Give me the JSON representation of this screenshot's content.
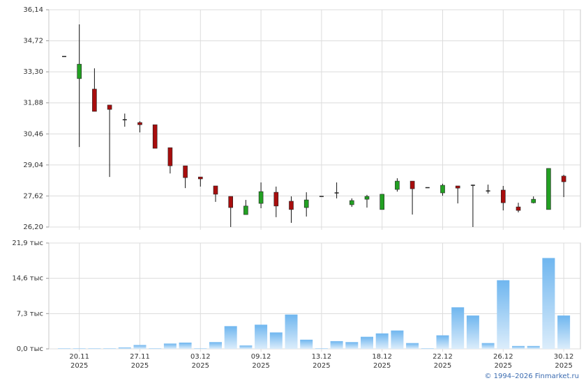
{
  "chart_data": [
    {
      "type": "candlestick",
      "up_color": "#22a022",
      "down_color": "#a80d0d",
      "flat_color": "#222222",
      "ylim": [
        26.2,
        36.14
      ],
      "yticks": [
        {
          "value": 26.2,
          "label": "26,20"
        },
        {
          "value": 27.62,
          "label": "27,62"
        },
        {
          "value": 29.04,
          "label": "29,04"
        },
        {
          "value": 30.46,
          "label": "30,46"
        },
        {
          "value": 31.88,
          "label": "31,88"
        },
        {
          "value": 33.3,
          "label": "33,30"
        },
        {
          "value": 34.72,
          "label": "34,72"
        },
        {
          "value": 36.14,
          "label": "36,14"
        }
      ],
      "grid": true,
      "open": [
        34.0,
        32.99,
        32.51,
        31.78,
        31.11,
        30.98,
        30.88,
        29.83,
        29.0,
        28.49,
        28.08,
        27.6,
        26.77,
        27.28,
        27.79,
        27.38,
        27.09,
        27.6,
        27.76,
        27.22,
        27.47,
        27.0,
        27.92,
        28.3,
        28.0,
        27.76,
        28.08,
        28.11,
        27.85,
        27.89,
        27.12,
        27.31,
        27.0,
        28.53
      ],
      "high": [
        34.0,
        35.47,
        33.46,
        31.78,
        31.39,
        31.04,
        30.88,
        29.83,
        29.0,
        28.49,
        28.08,
        27.6,
        27.44,
        28.24,
        28.05,
        27.6,
        27.79,
        27.6,
        28.24,
        27.51,
        27.67,
        27.7,
        28.43,
        28.3,
        28.0,
        28.18,
        28.08,
        28.14,
        28.14,
        28.08,
        27.31,
        27.6,
        28.88,
        28.59
      ],
      "low": [
        34.0,
        29.86,
        31.49,
        28.49,
        30.79,
        30.53,
        29.8,
        28.65,
        27.98,
        28.05,
        27.35,
        26.2,
        26.77,
        27.06,
        26.65,
        26.39,
        26.68,
        27.6,
        27.51,
        27.12,
        27.09,
        27.0,
        27.82,
        26.77,
        28.0,
        27.63,
        27.28,
        26.2,
        27.73,
        26.96,
        26.87,
        27.28,
        27.0,
        27.57
      ],
      "close": [
        34.0,
        33.65,
        31.49,
        31.58,
        31.11,
        30.88,
        29.8,
        29.0,
        28.46,
        28.4,
        27.7,
        27.09,
        27.16,
        27.82,
        27.16,
        27.0,
        27.44,
        27.6,
        27.76,
        27.41,
        27.6,
        27.7,
        28.3,
        27.95,
        28.0,
        28.11,
        27.98,
        28.11,
        27.85,
        27.31,
        26.96,
        27.47,
        28.88,
        28.27
      ]
    },
    {
      "type": "bar",
      "color": "#8ec8f4",
      "categories": [
        null,
        "20.11\n2025",
        null,
        null,
        null,
        "27.11\n2025",
        null,
        null,
        null,
        "03.12\n2025",
        null,
        null,
        null,
        "09.12\n2025",
        null,
        null,
        null,
        "13.12\n2025",
        null,
        null,
        null,
        "18.12\n2025",
        null,
        null,
        null,
        "22.12\n2025",
        null,
        null,
        null,
        "26.12\n2025",
        null,
        null,
        null,
        "30.12\n2025"
      ],
      "values": [
        0.1,
        0.1,
        0.1,
        0.1,
        0.3,
        0.8,
        0.1,
        1.1,
        1.3,
        0.1,
        1.4,
        4.7,
        0.7,
        5.0,
        3.4,
        7.1,
        1.9,
        0.1,
        1.6,
        1.4,
        2.5,
        3.2,
        3.8,
        1.2,
        0.1,
        2.8,
        8.6,
        6.9,
        1.2,
        14.2,
        0.6,
        0.6,
        18.8,
        6.9
      ],
      "ylim": [
        0,
        21.9
      ],
      "yticks": [
        {
          "value": 0,
          "label": "0,0 тыс"
        },
        {
          "value": 7.3,
          "label": "7,3 тыс"
        },
        {
          "value": 14.6,
          "label": "14,6 тыс"
        },
        {
          "value": 21.9,
          "label": "21,9 тыс"
        }
      ],
      "grid": true
    }
  ],
  "footer": "© 1994–2026 Finmarket.ru"
}
